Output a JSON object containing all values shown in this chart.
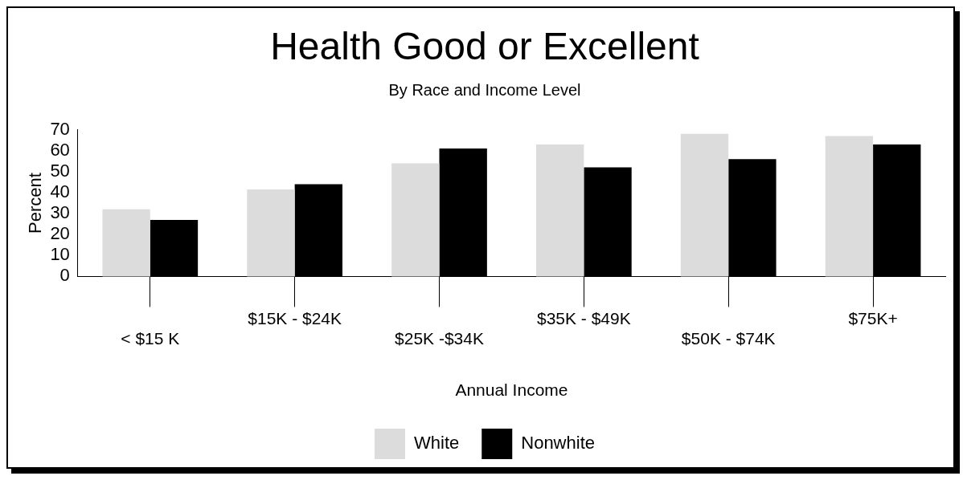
{
  "chart_data": {
    "type": "bar",
    "title": "Health Good or Excellent",
    "subtitle": "By Race and Income Level",
    "xlabel": "Annual Income",
    "ylabel": "Percent",
    "categories": [
      "< $15 K",
      "$15K - $24K",
      "$25K -$34K",
      "$35K - $49K",
      "$50K - $74K",
      "$75K+"
    ],
    "series": [
      {
        "name": "White",
        "color": "#dcdcdc",
        "values": [
          32,
          41.5,
          54,
          63,
          68,
          67
        ]
      },
      {
        "name": "Nonwhite",
        "color": "#000000",
        "values": [
          27,
          44,
          61,
          52,
          56,
          63
        ]
      }
    ],
    "ylim": [
      0,
      70
    ],
    "yticks": [
      0,
      10,
      20,
      30,
      40,
      50,
      60,
      70
    ],
    "grid": false,
    "legend": "bottom"
  }
}
